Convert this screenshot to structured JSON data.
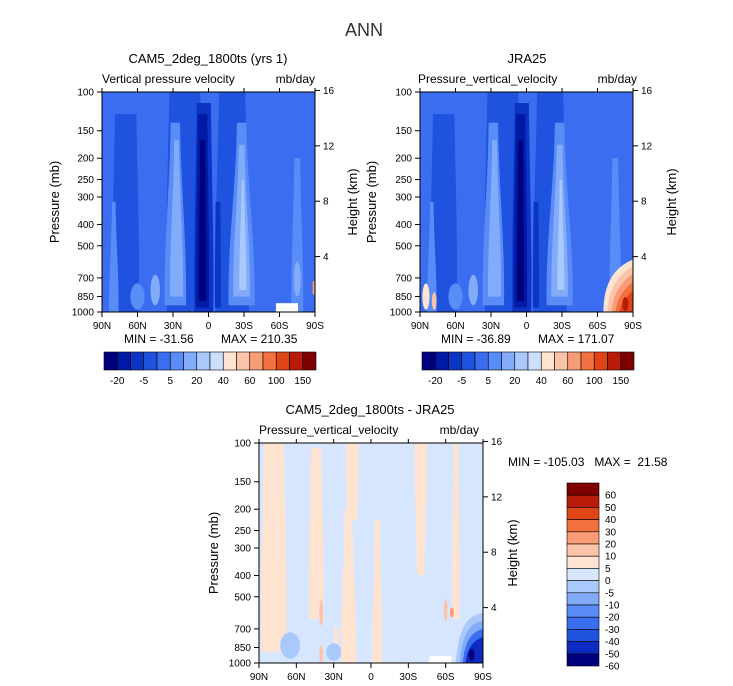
{
  "title": "ANN",
  "colors": {
    "blues": [
      "#00007f",
      "#001aa6",
      "#0d35c5",
      "#1f52de",
      "#3a6df0",
      "#5a8cf7",
      "#82abfa",
      "#a9c8fc",
      "#cbe0fd"
    ],
    "reds": [
      "#fde3d0",
      "#fbc4a8",
      "#f89c78",
      "#f2713f",
      "#e04515",
      "#b81b07",
      "#7f0000"
    ],
    "diff": [
      "#00007f",
      "#0d2bc0",
      "#1f52de",
      "#3a6df0",
      "#5a8cf7",
      "#82abfa",
      "#a9c8fc",
      "#d6e6fe",
      "#fde3d0",
      "#fbc4a8",
      "#f89c78",
      "#f2713f",
      "#e04515",
      "#b81b07",
      "#7f0000"
    ]
  },
  "chart_data": [
    {
      "type": "heatmap",
      "title": "CAM5_2deg_1800ts (yrs 1)",
      "subtitle_left": "Vertical pressure velocity",
      "subtitle_right": "mb/day",
      "xlabel": "",
      "ylabel": "Pressure (mb)",
      "ylabel_right": "Height (km)",
      "x_ticks": [
        "90N",
        "60N",
        "30N",
        "0",
        "30S",
        "60S",
        "90S"
      ],
      "x_values": [
        90,
        60,
        30,
        0,
        -30,
        -60,
        -90
      ],
      "y_ticks": [
        "100",
        "150",
        "200",
        "250",
        "300",
        "400",
        "500",
        "700",
        "850",
        "1000"
      ],
      "y_values": [
        100,
        150,
        200,
        250,
        300,
        400,
        500,
        700,
        850,
        1000
      ],
      "y_right_ticks": [
        "16",
        "12",
        "8",
        "4"
      ],
      "y_right_values": [
        16,
        12,
        8,
        4
      ],
      "ylim": [
        1000,
        100
      ],
      "min_label": "MIN = -31.56",
      "max_label": "MAX = 210.35",
      "min": -31.56,
      "max": 210.35,
      "colorbar_labels": [
        "-20",
        "-5",
        "5",
        "20",
        "40",
        "60",
        "100",
        "150"
      ]
    },
    {
      "type": "heatmap",
      "title": "JRA25",
      "subtitle_left": "Pressure_vertical_velocity",
      "subtitle_right": "mb/day",
      "xlabel": "",
      "ylabel": "Pressure (mb)",
      "ylabel_right": "Height (km)",
      "x_ticks": [
        "90N",
        "60N",
        "30N",
        "0",
        "30S",
        "60S",
        "90S"
      ],
      "x_values": [
        90,
        60,
        30,
        0,
        -30,
        -60,
        -90
      ],
      "y_ticks": [
        "100",
        "150",
        "200",
        "250",
        "300",
        "400",
        "500",
        "700",
        "850",
        "1000"
      ],
      "y_values": [
        100,
        150,
        200,
        250,
        300,
        400,
        500,
        700,
        850,
        1000
      ],
      "y_right_ticks": [
        "16",
        "12",
        "8",
        "4"
      ],
      "y_right_values": [
        16,
        12,
        8,
        4
      ],
      "ylim": [
        1000,
        100
      ],
      "min_label": "MIN = -36.89",
      "max_label": "MAX = 171.07",
      "min": -36.89,
      "max": 171.07,
      "colorbar_labels": [
        "-20",
        "-5",
        "5",
        "20",
        "40",
        "60",
        "100",
        "150"
      ]
    },
    {
      "type": "heatmap",
      "title": "CAM5_2deg_1800ts - JRA25",
      "subtitle_left": "Pressure_vertical_velocity",
      "subtitle_right": "mb/day",
      "xlabel": "",
      "ylabel": "Pressure (mb)",
      "ylabel_right": "Height (km)",
      "x_ticks": [
        "90N",
        "60N",
        "30N",
        "0",
        "30S",
        "60S",
        "90S"
      ],
      "x_values": [
        90,
        60,
        30,
        0,
        -30,
        -60,
        -90
      ],
      "y_ticks": [
        "100",
        "150",
        "200",
        "250",
        "300",
        "400",
        "500",
        "700",
        "850",
        "1000"
      ],
      "y_values": [
        100,
        150,
        200,
        250,
        300,
        400,
        500,
        700,
        850,
        1000
      ],
      "y_right_ticks": [
        "16",
        "12",
        "8",
        "4"
      ],
      "y_right_values": [
        16,
        12,
        8,
        4
      ],
      "ylim": [
        1000,
        100
      ],
      "minmax_label": "MIN = -105.03   MAX =  21.58",
      "min": -105.03,
      "max": 21.58,
      "colorbar_labels": [
        "60",
        "50",
        "40",
        "30",
        "20",
        "10",
        "5",
        "0",
        "-5",
        "-10",
        "-20",
        "-30",
        "-40",
        "-50",
        "-60"
      ]
    }
  ]
}
